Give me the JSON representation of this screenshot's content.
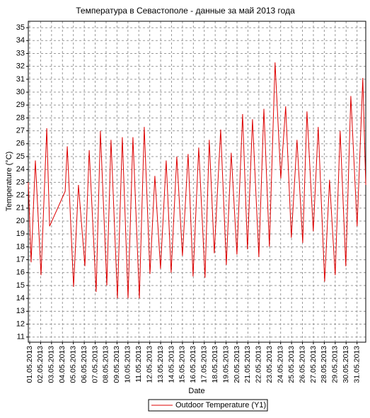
{
  "chart_data": {
    "type": "line",
    "title": "Температура в Севастополе - данные за май 2013 года",
    "x_label": "Date",
    "y_label": "Temperature (°C)",
    "grid": true,
    "legend": "bottom",
    "xlim": [
      0.87,
      31.8
    ],
    "ylim": [
      10.6,
      35.5
    ],
    "yticks": [
      11,
      12,
      13,
      14,
      15,
      16,
      17,
      18,
      19,
      20,
      21,
      22,
      23,
      24,
      25,
      26,
      27,
      28,
      29,
      30,
      31,
      32,
      33,
      34,
      35
    ],
    "xticks": [
      {
        "value": 1,
        "label": "01.05.2013"
      },
      {
        "value": 2,
        "label": "02.05.2013"
      },
      {
        "value": 3,
        "label": "03.05.2013"
      },
      {
        "value": 4,
        "label": "04.05.2013"
      },
      {
        "value": 5,
        "label": "05.05.2013"
      },
      {
        "value": 6,
        "label": "06.05.2013"
      },
      {
        "value": 7,
        "label": "07.05.2013"
      },
      {
        "value": 8,
        "label": "08.05.2013"
      },
      {
        "value": 9,
        "label": "09.05.2013"
      },
      {
        "value": 10,
        "label": "10.05.2013"
      },
      {
        "value": 11,
        "label": "11.05.2013"
      },
      {
        "value": 12,
        "label": "12.05.2013"
      },
      {
        "value": 13,
        "label": "13.05.2013"
      },
      {
        "value": 14,
        "label": "14.05.2013"
      },
      {
        "value": 15,
        "label": "15.05.2013"
      },
      {
        "value": 16,
        "label": "16.05.2013"
      },
      {
        "value": 17,
        "label": "17.05.2013"
      },
      {
        "value": 18,
        "label": "18.05.2013"
      },
      {
        "value": 19,
        "label": "19.05.2013"
      },
      {
        "value": 20,
        "label": "20.05.2013"
      },
      {
        "value": 21,
        "label": "21.05.2013"
      },
      {
        "value": 22,
        "label": "22.05.2013"
      },
      {
        "value": 23,
        "label": "23.05.2013"
      },
      {
        "value": 24,
        "label": "24.05.2013"
      },
      {
        "value": 25,
        "label": "25.05.2013"
      },
      {
        "value": 26,
        "label": "26.05.2013"
      },
      {
        "value": 27,
        "label": "27.05.2013"
      },
      {
        "value": 28,
        "label": "28.05.2013"
      },
      {
        "value": 29,
        "label": "29.05.2013"
      },
      {
        "value": 30,
        "label": "30.05.2013"
      },
      {
        "value": 31,
        "label": "31.05.2013"
      }
    ],
    "x": [
      0.87,
      1.13,
      1.52,
      2.04,
      2.56,
      2.82,
      4.25,
      4.44,
      5.02,
      5.47,
      6.06,
      6.45,
      7.09,
      7.48,
      8.07,
      8.45,
      9.04,
      9.49,
      10.01,
      10.46,
      11.05,
      11.5,
      12.02,
      12.47,
      12.99,
      13.51,
      13.96,
      14.48,
      15.0,
      15.52,
      15.97,
      16.49,
      17.07,
      17.46,
      17.92,
      18.5,
      19.02,
      19.47,
      19.99,
      20.51,
      20.96,
      21.42,
      22.0,
      22.46,
      22.97,
      23.49,
      24.01,
      24.46,
      24.98,
      25.5,
      26.02,
      26.41,
      26.99,
      27.44,
      28.03,
      28.48,
      29.0,
      29.45,
      29.97,
      30.43,
      31.01,
      31.53,
      31.8
    ],
    "series": [
      {
        "name": "Outdoor Temperature (Y1)",
        "color": "#dd0000",
        "values": [
          23,
          16.8,
          24.7,
          15.8,
          27.2,
          19.6,
          22.3,
          25.8,
          14.9,
          22.8,
          16.5,
          25.5,
          14.5,
          27,
          15,
          26.3,
          14,
          26.5,
          14,
          26.5,
          14,
          27.3,
          15.9,
          23.5,
          16.3,
          24.7,
          16,
          25,
          17.3,
          25.2,
          15.7,
          25.7,
          15.6,
          26.3,
          17.5,
          27.1,
          16.6,
          25.3,
          17.4,
          28.3,
          17.8,
          27.9,
          17.2,
          28.7,
          18,
          32.3,
          23.3,
          28.9,
          18.7,
          26.3,
          18.3,
          28.5,
          19.2,
          27.3,
          15.3,
          23.2,
          15.8,
          27,
          16.5,
          29.7,
          19.6,
          31.1,
          22.8
        ]
      }
    ]
  }
}
